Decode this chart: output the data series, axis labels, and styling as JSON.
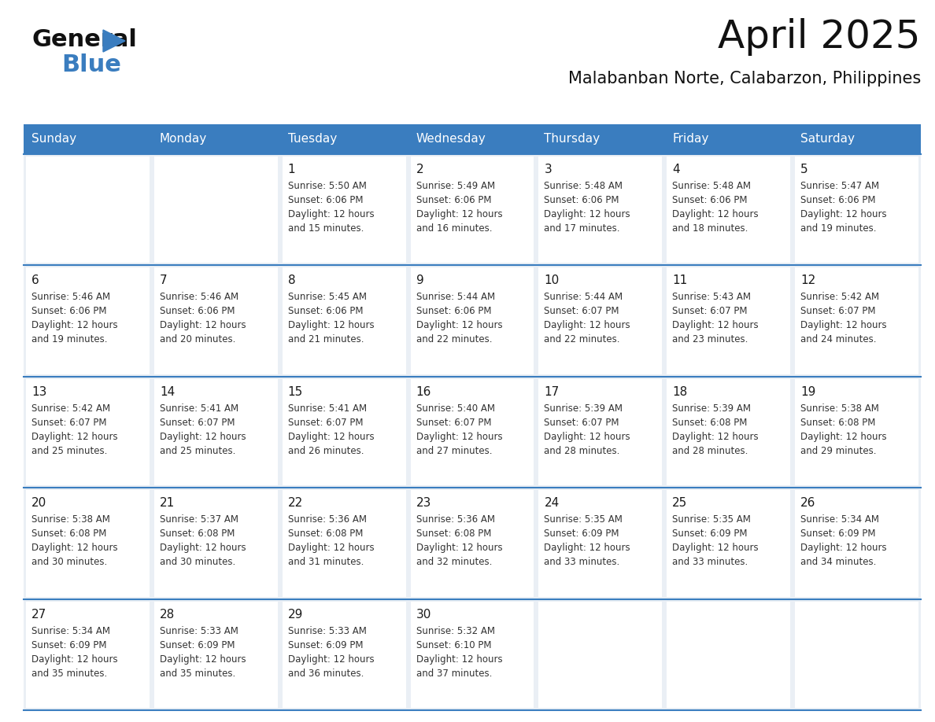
{
  "title": "April 2025",
  "subtitle": "Malabanban Norte, Calabarzon, Philippines",
  "title_fontsize": 36,
  "subtitle_fontsize": 15,
  "header_bg_color": "#3a7dbf",
  "header_text_color": "#ffffff",
  "row_bg_color": "#eaeff5",
  "cell_bg_color": "#ffffff",
  "day_text_color": "#1a1a1a",
  "content_text_color": "#333333",
  "line_color": "#3a7dbf",
  "logo_general_color": "#111111",
  "logo_blue_color": "#3a7dbf",
  "logo_triangle_color": "#3a7dbf",
  "days_of_week": [
    "Sunday",
    "Monday",
    "Tuesday",
    "Wednesday",
    "Thursday",
    "Friday",
    "Saturday"
  ],
  "calendar_data": [
    [
      {
        "day": null,
        "sunrise": null,
        "sunset": null,
        "daylight_line1": null,
        "daylight_line2": null
      },
      {
        "day": null,
        "sunrise": null,
        "sunset": null,
        "daylight_line1": null,
        "daylight_line2": null
      },
      {
        "day": "1",
        "sunrise": "Sunrise: 5:50 AM",
        "sunset": "Sunset: 6:06 PM",
        "daylight_line1": "Daylight: 12 hours",
        "daylight_line2": "and 15 minutes."
      },
      {
        "day": "2",
        "sunrise": "Sunrise: 5:49 AM",
        "sunset": "Sunset: 6:06 PM",
        "daylight_line1": "Daylight: 12 hours",
        "daylight_line2": "and 16 minutes."
      },
      {
        "day": "3",
        "sunrise": "Sunrise: 5:48 AM",
        "sunset": "Sunset: 6:06 PM",
        "daylight_line1": "Daylight: 12 hours",
        "daylight_line2": "and 17 minutes."
      },
      {
        "day": "4",
        "sunrise": "Sunrise: 5:48 AM",
        "sunset": "Sunset: 6:06 PM",
        "daylight_line1": "Daylight: 12 hours",
        "daylight_line2": "and 18 minutes."
      },
      {
        "day": "5",
        "sunrise": "Sunrise: 5:47 AM",
        "sunset": "Sunset: 6:06 PM",
        "daylight_line1": "Daylight: 12 hours",
        "daylight_line2": "and 19 minutes."
      }
    ],
    [
      {
        "day": "6",
        "sunrise": "Sunrise: 5:46 AM",
        "sunset": "Sunset: 6:06 PM",
        "daylight_line1": "Daylight: 12 hours",
        "daylight_line2": "and 19 minutes."
      },
      {
        "day": "7",
        "sunrise": "Sunrise: 5:46 AM",
        "sunset": "Sunset: 6:06 PM",
        "daylight_line1": "Daylight: 12 hours",
        "daylight_line2": "and 20 minutes."
      },
      {
        "day": "8",
        "sunrise": "Sunrise: 5:45 AM",
        "sunset": "Sunset: 6:06 PM",
        "daylight_line1": "Daylight: 12 hours",
        "daylight_line2": "and 21 minutes."
      },
      {
        "day": "9",
        "sunrise": "Sunrise: 5:44 AM",
        "sunset": "Sunset: 6:06 PM",
        "daylight_line1": "Daylight: 12 hours",
        "daylight_line2": "and 22 minutes."
      },
      {
        "day": "10",
        "sunrise": "Sunrise: 5:44 AM",
        "sunset": "Sunset: 6:07 PM",
        "daylight_line1": "Daylight: 12 hours",
        "daylight_line2": "and 22 minutes."
      },
      {
        "day": "11",
        "sunrise": "Sunrise: 5:43 AM",
        "sunset": "Sunset: 6:07 PM",
        "daylight_line1": "Daylight: 12 hours",
        "daylight_line2": "and 23 minutes."
      },
      {
        "day": "12",
        "sunrise": "Sunrise: 5:42 AM",
        "sunset": "Sunset: 6:07 PM",
        "daylight_line1": "Daylight: 12 hours",
        "daylight_line2": "and 24 minutes."
      }
    ],
    [
      {
        "day": "13",
        "sunrise": "Sunrise: 5:42 AM",
        "sunset": "Sunset: 6:07 PM",
        "daylight_line1": "Daylight: 12 hours",
        "daylight_line2": "and 25 minutes."
      },
      {
        "day": "14",
        "sunrise": "Sunrise: 5:41 AM",
        "sunset": "Sunset: 6:07 PM",
        "daylight_line1": "Daylight: 12 hours",
        "daylight_line2": "and 25 minutes."
      },
      {
        "day": "15",
        "sunrise": "Sunrise: 5:41 AM",
        "sunset": "Sunset: 6:07 PM",
        "daylight_line1": "Daylight: 12 hours",
        "daylight_line2": "and 26 minutes."
      },
      {
        "day": "16",
        "sunrise": "Sunrise: 5:40 AM",
        "sunset": "Sunset: 6:07 PM",
        "daylight_line1": "Daylight: 12 hours",
        "daylight_line2": "and 27 minutes."
      },
      {
        "day": "17",
        "sunrise": "Sunrise: 5:39 AM",
        "sunset": "Sunset: 6:07 PM",
        "daylight_line1": "Daylight: 12 hours",
        "daylight_line2": "and 28 minutes."
      },
      {
        "day": "18",
        "sunrise": "Sunrise: 5:39 AM",
        "sunset": "Sunset: 6:08 PM",
        "daylight_line1": "Daylight: 12 hours",
        "daylight_line2": "and 28 minutes."
      },
      {
        "day": "19",
        "sunrise": "Sunrise: 5:38 AM",
        "sunset": "Sunset: 6:08 PM",
        "daylight_line1": "Daylight: 12 hours",
        "daylight_line2": "and 29 minutes."
      }
    ],
    [
      {
        "day": "20",
        "sunrise": "Sunrise: 5:38 AM",
        "sunset": "Sunset: 6:08 PM",
        "daylight_line1": "Daylight: 12 hours",
        "daylight_line2": "and 30 minutes."
      },
      {
        "day": "21",
        "sunrise": "Sunrise: 5:37 AM",
        "sunset": "Sunset: 6:08 PM",
        "daylight_line1": "Daylight: 12 hours",
        "daylight_line2": "and 30 minutes."
      },
      {
        "day": "22",
        "sunrise": "Sunrise: 5:36 AM",
        "sunset": "Sunset: 6:08 PM",
        "daylight_line1": "Daylight: 12 hours",
        "daylight_line2": "and 31 minutes."
      },
      {
        "day": "23",
        "sunrise": "Sunrise: 5:36 AM",
        "sunset": "Sunset: 6:08 PM",
        "daylight_line1": "Daylight: 12 hours",
        "daylight_line2": "and 32 minutes."
      },
      {
        "day": "24",
        "sunrise": "Sunrise: 5:35 AM",
        "sunset": "Sunset: 6:09 PM",
        "daylight_line1": "Daylight: 12 hours",
        "daylight_line2": "and 33 minutes."
      },
      {
        "day": "25",
        "sunrise": "Sunrise: 5:35 AM",
        "sunset": "Sunset: 6:09 PM",
        "daylight_line1": "Daylight: 12 hours",
        "daylight_line2": "and 33 minutes."
      },
      {
        "day": "26",
        "sunrise": "Sunrise: 5:34 AM",
        "sunset": "Sunset: 6:09 PM",
        "daylight_line1": "Daylight: 12 hours",
        "daylight_line2": "and 34 minutes."
      }
    ],
    [
      {
        "day": "27",
        "sunrise": "Sunrise: 5:34 AM",
        "sunset": "Sunset: 6:09 PM",
        "daylight_line1": "Daylight: 12 hours",
        "daylight_line2": "and 35 minutes."
      },
      {
        "day": "28",
        "sunrise": "Sunrise: 5:33 AM",
        "sunset": "Sunset: 6:09 PM",
        "daylight_line1": "Daylight: 12 hours",
        "daylight_line2": "and 35 minutes."
      },
      {
        "day": "29",
        "sunrise": "Sunrise: 5:33 AM",
        "sunset": "Sunset: 6:09 PM",
        "daylight_line1": "Daylight: 12 hours",
        "daylight_line2": "and 36 minutes."
      },
      {
        "day": "30",
        "sunrise": "Sunrise: 5:32 AM",
        "sunset": "Sunset: 6:10 PM",
        "daylight_line1": "Daylight: 12 hours",
        "daylight_line2": "and 37 minutes."
      },
      {
        "day": null,
        "sunrise": null,
        "sunset": null,
        "daylight_line1": null,
        "daylight_line2": null
      },
      {
        "day": null,
        "sunrise": null,
        "sunset": null,
        "daylight_line1": null,
        "daylight_line2": null
      },
      {
        "day": null,
        "sunrise": null,
        "sunset": null,
        "daylight_line1": null,
        "daylight_line2": null
      }
    ]
  ]
}
